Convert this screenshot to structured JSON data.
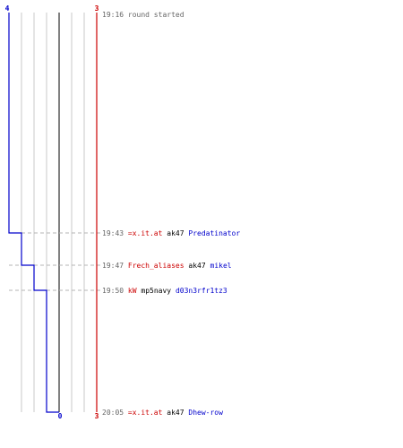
{
  "chart_data": {
    "type": "line",
    "title": "",
    "colors": {
      "blue_team": "#0000cc",
      "red_team": "#cc0000",
      "time": "#666666",
      "weapon": "#000000",
      "grid": "#c8c8c8",
      "center_line": "#808080",
      "event_line": "#b4b4b4"
    },
    "axis_labels": {
      "blue_start": "4",
      "red_start": "3",
      "blue_end": "0",
      "red_end": "3"
    },
    "grid": true,
    "blue_team_remaining": {
      "x": [
        0,
        1,
        2,
        3,
        4
      ],
      "values": [
        4,
        3,
        2,
        1,
        0
      ]
    },
    "events": [
      {
        "time": "19:16",
        "text": "round started"
      },
      {
        "time": "19:43",
        "killer": "=x.it.at",
        "killer_team": "red",
        "weapon": "ak47",
        "victim": "Predatinator",
        "victim_team": "blue"
      },
      {
        "time": "19:47",
        "killer": "Frech_aliases",
        "killer_team": "red",
        "weapon": "ak47",
        "victim": "mikel",
        "victim_team": "blue"
      },
      {
        "time": "19:50",
        "killer": "kW",
        "killer_team": "red",
        "weapon": "mp5navy",
        "victim": "d03n3rfr1tz3",
        "victim_team": "blue"
      },
      {
        "time": "20:05",
        "killer": "=x.it.at",
        "killer_team": "red",
        "weapon": "ak47",
        "victim": "Dhew-row",
        "victim_team": "blue"
      }
    ]
  }
}
